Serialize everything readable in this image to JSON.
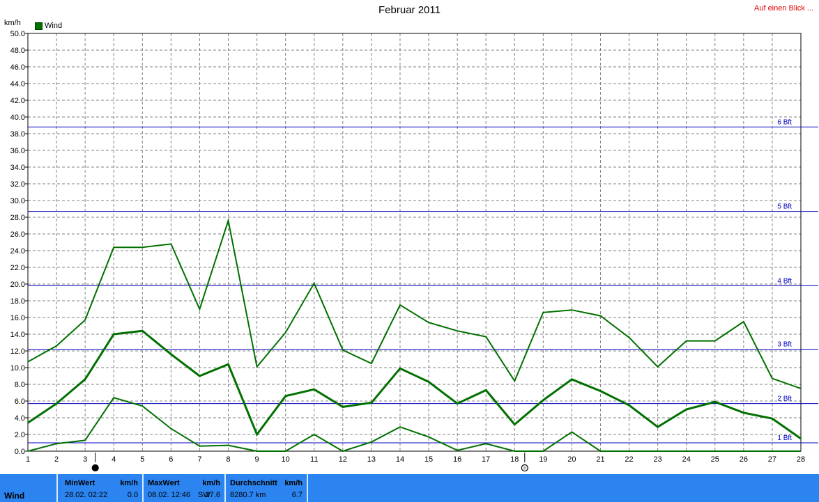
{
  "header": {
    "title": "Februar 2011",
    "link": "Auf einen Blick ...",
    "unit": "km/h",
    "legend_label": "Wind",
    "legend_color": "#007000"
  },
  "footer": {
    "label": "Wind",
    "min": {
      "head": "MinWert",
      "unit": "km/h",
      "date": "28.02.  02:22",
      "value": "0.0"
    },
    "max": {
      "head": "MaxWert",
      "unit": "km/h",
      "date": "08.02.  12:46",
      "dir": "SW",
      "value": "27.6"
    },
    "avg": {
      "head": "Durchschnitt",
      "unit": "km/h",
      "distance": "8280.7 km",
      "value": "6.7"
    }
  },
  "chart_data": {
    "type": "line",
    "title": "Februar 2011",
    "ylabel": "km/h",
    "ylim": [
      0,
      50
    ],
    "y_ticks": [
      "0.0",
      "2.0",
      "4.0",
      "6.0",
      "8.0",
      "10.0",
      "12.0",
      "14.0",
      "16.0",
      "18.0",
      "20.0",
      "22.0",
      "24.0",
      "26.0",
      "28.0",
      "30.0",
      "32.0",
      "34.0",
      "36.0",
      "38.0",
      "40.0",
      "42.0",
      "44.0",
      "46.0",
      "48.0",
      "50.0"
    ],
    "x": [
      1,
      2,
      3,
      4,
      5,
      6,
      7,
      8,
      9,
      10,
      11,
      12,
      13,
      14,
      15,
      16,
      17,
      18,
      19,
      20,
      21,
      22,
      23,
      24,
      25,
      26,
      27,
      28
    ],
    "grid": true,
    "series": [
      {
        "role": "max",
        "width": 2,
        "values": [
          10.7,
          12.6,
          15.7,
          24.4,
          24.4,
          24.8,
          17.0,
          27.6,
          10.1,
          14.2,
          20.1,
          12.1,
          10.5,
          17.5,
          15.4,
          14.4,
          13.7,
          8.4,
          16.6,
          16.9,
          16.2,
          13.6,
          10.1,
          13.2,
          13.2,
          15.5,
          8.7,
          7.5
        ]
      },
      {
        "role": "avg",
        "width": 3,
        "values": [
          3.4,
          5.7,
          8.6,
          14.0,
          14.4,
          11.6,
          9.0,
          10.4,
          2.0,
          6.6,
          7.4,
          5.3,
          5.8,
          9.9,
          8.3,
          5.7,
          7.3,
          3.2,
          6.1,
          8.6,
          7.2,
          5.5,
          2.9,
          5.0,
          5.9,
          4.6,
          3.9,
          1.5
        ]
      },
      {
        "role": "min",
        "width": 2,
        "values": [
          0.0,
          0.9,
          1.3,
          6.4,
          5.4,
          2.7,
          0.6,
          0.7,
          0.0,
          0.0,
          2.0,
          0.0,
          1.1,
          2.9,
          1.7,
          0.1,
          0.9,
          0.0,
          0.0,
          2.3,
          0.0,
          0.0,
          0.0,
          0.0,
          0.0,
          0.0,
          0.0,
          0.0
        ]
      }
    ],
    "line_color": "#007000",
    "beaufort_lines": [
      {
        "label": "1 Bft",
        "value": 1.0
      },
      {
        "label": "2 Bft",
        "value": 5.7
      },
      {
        "label": "3 Bft",
        "value": 12.2
      },
      {
        "label": "4 Bft",
        "value": 19.8
      },
      {
        "label": "5 Bft",
        "value": 28.7
      },
      {
        "label": "6 Bft",
        "value": 38.8
      }
    ],
    "beaufort_color": "#0000c0",
    "moon_phases": [
      {
        "day": 3,
        "phase": "new-moon"
      },
      {
        "day": 18,
        "phase": "full-moon"
      }
    ]
  }
}
